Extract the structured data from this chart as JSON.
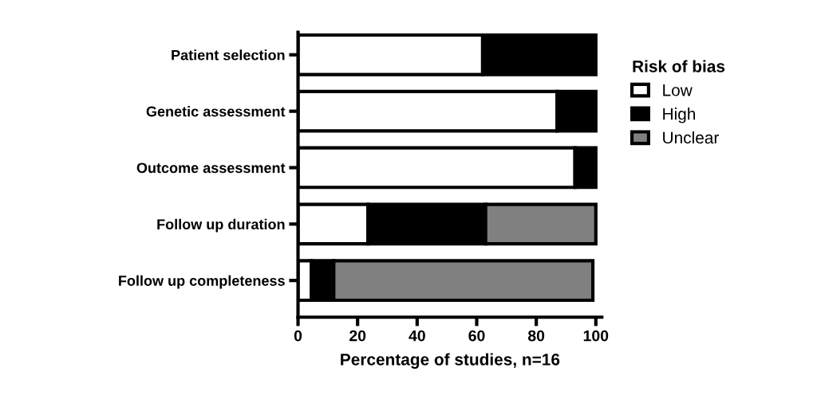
{
  "chart_data": {
    "type": "bar",
    "orientation": "horizontal",
    "stacked": true,
    "categories": [
      "Patient selection",
      "Genetic assessment",
      "Outcome assessment",
      "Follow up duration",
      "Follow up completeness"
    ],
    "series": [
      {
        "name": "Low",
        "color": "#ffffff",
        "values": [
          62,
          87,
          93,
          23.5,
          4.5
        ]
      },
      {
        "name": "High",
        "color": "#000000",
        "values": [
          38,
          13,
          7,
          39.5,
          7.5
        ]
      },
      {
        "name": "Unclear",
        "color": "#808080",
        "values": [
          null,
          null,
          null,
          37,
          87
        ]
      }
    ],
    "xlabel": "Percentage of studies, n=16",
    "legend_title": "Risk of bias",
    "legend": "right",
    "xlim": [
      0,
      102
    ],
    "xticks": [
      0,
      20,
      40,
      60,
      80,
      100
    ],
    "grid": false
  }
}
